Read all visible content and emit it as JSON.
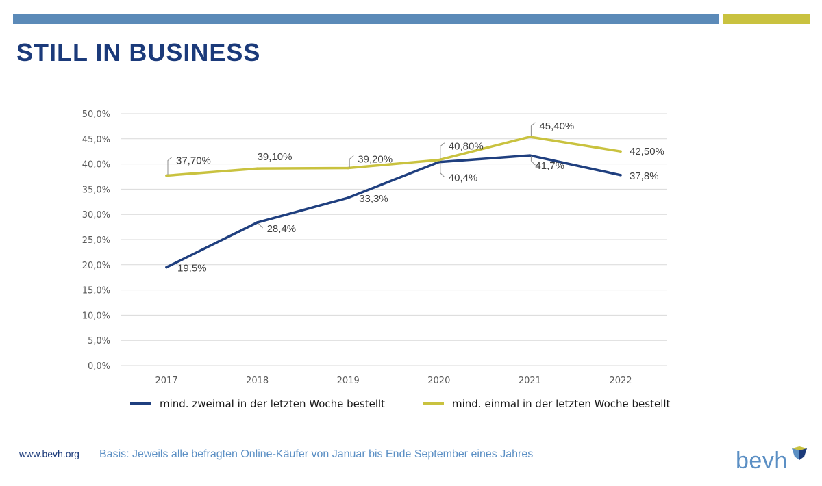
{
  "header": {
    "title": "STILL IN BUSINESS",
    "bar_color_blue": "#5b8ab8",
    "bar_color_yellow": "#c9c23f"
  },
  "chart_data": {
    "type": "line",
    "categories": [
      "2017",
      "2018",
      "2019",
      "2020",
      "2021",
      "2022"
    ],
    "ylim": [
      0,
      50
    ],
    "yticks": [
      "0,0%",
      "5,0%",
      "10,0%",
      "15,0%",
      "20,0%",
      "25,0%",
      "30,0%",
      "35,0%",
      "40,0%",
      "45,0%",
      "50,0%"
    ],
    "grid": true,
    "legend_position": "bottom",
    "series": [
      {
        "name": "mind. zweimal in der letzten Woche bestellt",
        "color": "#1f3f7f",
        "values": [
          19.5,
          28.4,
          33.3,
          40.4,
          41.7,
          37.8
        ],
        "labels": [
          "19,5%",
          "28,4%",
          "33,3%",
          "40,4%",
          "41,7%",
          "37,8%"
        ]
      },
      {
        "name": "mind. einmal in der letzten Woche bestellt",
        "color": "#c9c23f",
        "values": [
          37.7,
          39.1,
          39.2,
          40.8,
          45.4,
          42.5
        ],
        "labels": [
          "37,70%",
          "39,10%",
          "39,20%",
          "40,80%",
          "45,40%",
          "42,50%"
        ]
      }
    ]
  },
  "footer": {
    "url": "www.bevh.org",
    "note": "Basis: Jeweils alle befragten Online-Käufer von Januar bis Ende September eines Jahres",
    "logo_text": "bevh",
    "logo_color_blue": "#5b8fc4",
    "logo_color_yellow": "#c9c23f"
  }
}
